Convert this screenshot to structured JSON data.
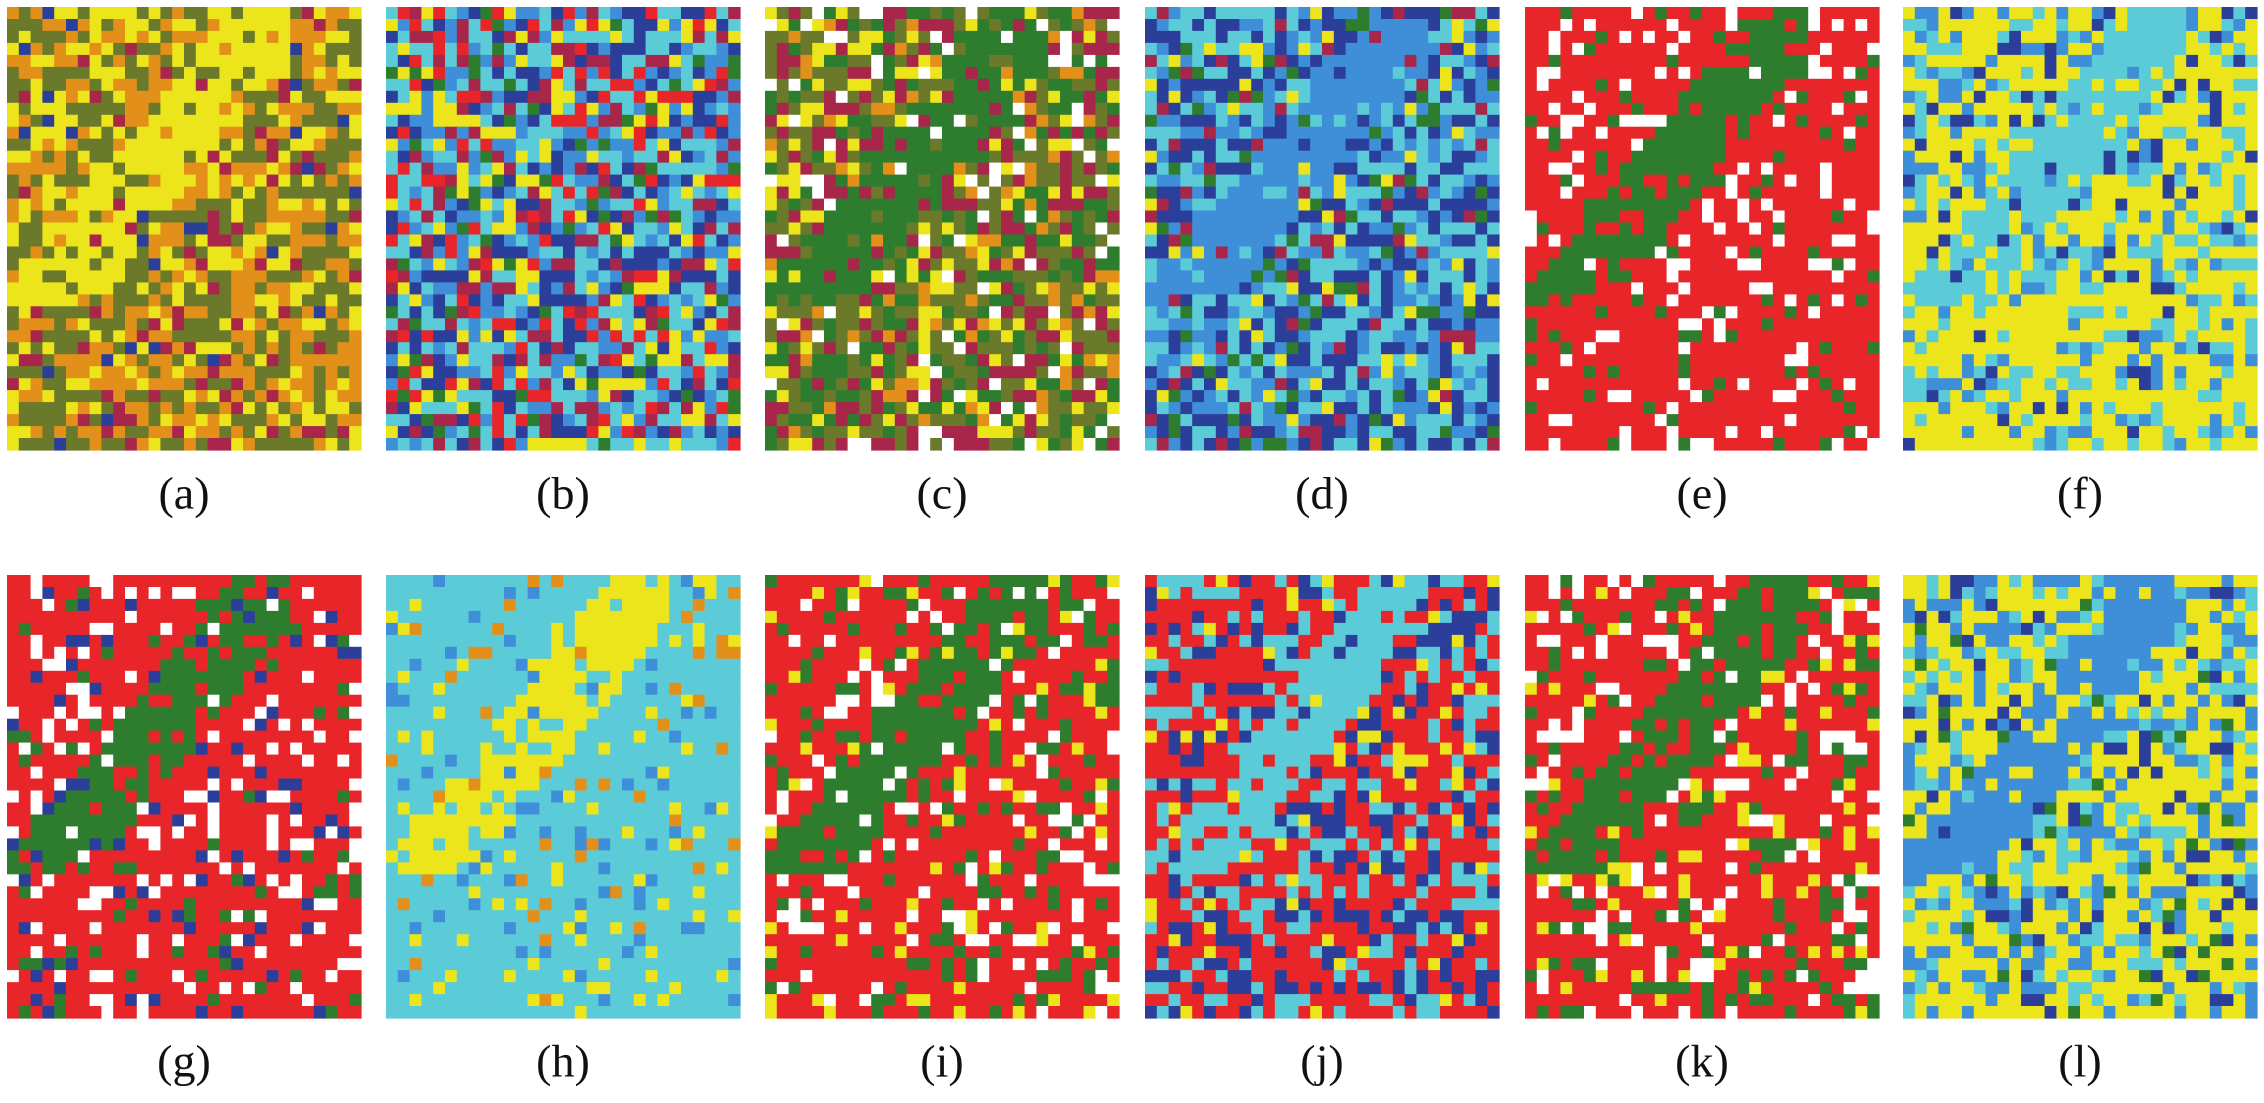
{
  "panels": [
    {
      "label": "(a)"
    },
    {
      "label": "(b)"
    },
    {
      "label": "(c)"
    },
    {
      "label": "(d)"
    },
    {
      "label": "(e)"
    },
    {
      "label": "(f)"
    },
    {
      "label": "(g)"
    },
    {
      "label": "(h)"
    },
    {
      "label": "(i)"
    },
    {
      "label": "(j)"
    },
    {
      "label": "(k)"
    },
    {
      "label": "(l)"
    }
  ]
}
